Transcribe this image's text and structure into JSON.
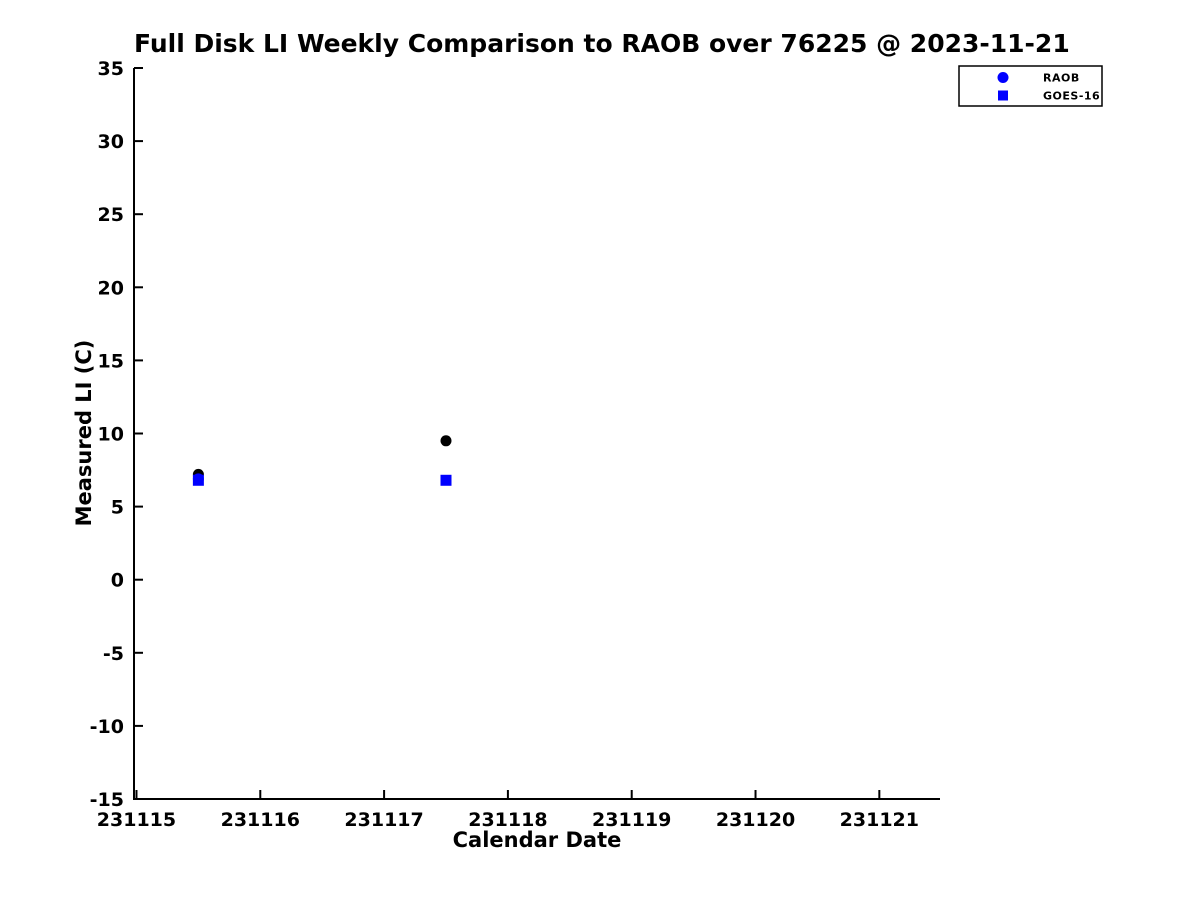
{
  "figure": {
    "background": "#ffffff",
    "text_color": "#000000",
    "axis_color": "#000000"
  },
  "chart_data": {
    "type": "scatter",
    "title": "Full Disk LI Weekly Comparison to RAOB over 76225 @ 2023-11-21",
    "xlabel": "Calendar Date",
    "ylabel": "Measured LI (C)",
    "xlim": [
      231114.98,
      231121.49
    ],
    "ylim": [
      -15,
      35
    ],
    "xticks": [
      231115,
      231116,
      231117,
      231118,
      231119,
      231120,
      231121
    ],
    "yticks": [
      35,
      30,
      25,
      20,
      15,
      10,
      5,
      0,
      -5,
      -10,
      -15
    ],
    "grid": false,
    "legend": {
      "position": "top-right",
      "entries": [
        {
          "label": "RAOB",
          "marker": "circle",
          "color": "#0000ff"
        },
        {
          "label": "GOES-16",
          "marker": "square",
          "color": "#0000ff"
        }
      ]
    },
    "series": [
      {
        "name": "black-circles",
        "marker": "circle",
        "color": "#000000",
        "points": [
          [
            231115.5,
            7.2
          ],
          [
            231117.5,
            9.5
          ]
        ]
      },
      {
        "name": "GOES-16",
        "marker": "square",
        "color": "#0000ff",
        "points": [
          [
            231115.5,
            6.8
          ],
          [
            231117.5,
            6.8
          ]
        ]
      },
      {
        "name": "RAOB",
        "marker": "circle",
        "color": "#0000ff",
        "points": [
          [
            231115.5,
            6.9
          ]
        ]
      }
    ]
  }
}
